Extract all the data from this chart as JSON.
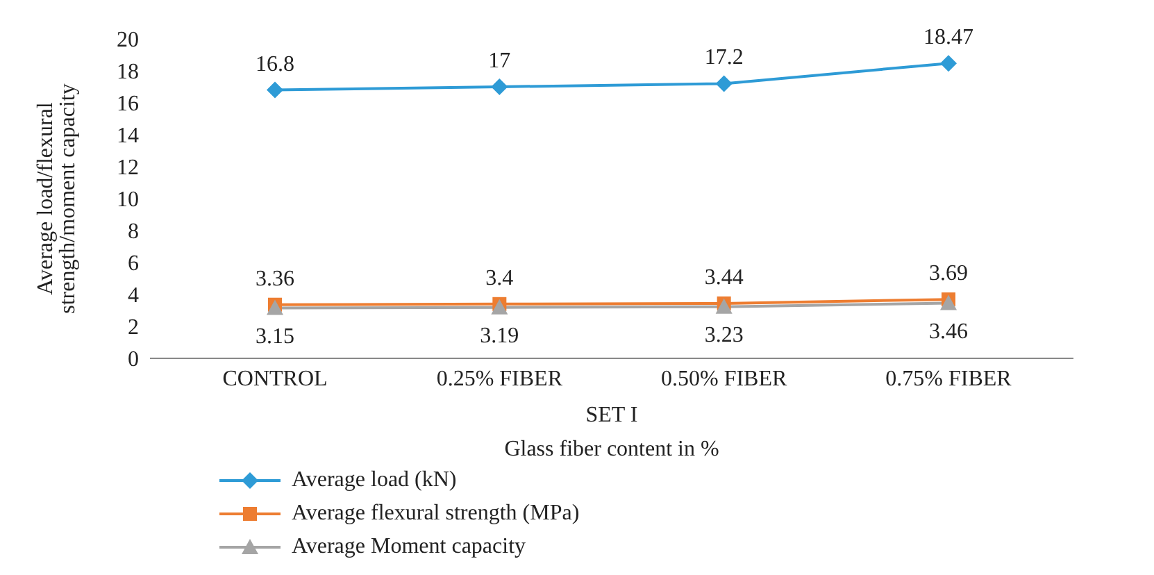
{
  "chart_data": {
    "type": "line",
    "xlabel": "Glass fiber content in %",
    "ylabel": "Average load/flexural strength/moment capacity",
    "categories": [
      "CONTROL",
      "0.25% FIBER",
      "0.50% FIBER",
      "0.75% FIBER"
    ],
    "series": [
      {
        "name": "Average load (kN)",
        "color": "#2e9bd6",
        "marker": "diamond",
        "values": [
          16.8,
          17,
          17.2,
          18.47
        ]
      },
      {
        "name": "Average flexural strength (MPa)",
        "color": "#ed7d31",
        "marker": "square",
        "values": [
          3.36,
          3.4,
          3.44,
          3.69
        ]
      },
      {
        "name": "Average Moment capacity",
        "color": "#a5a5a5",
        "marker": "triangle",
        "values": [
          3.15,
          3.19,
          3.23,
          3.46
        ]
      }
    ],
    "ylim": [
      0,
      20
    ],
    "yticks": [
      0,
      2,
      4,
      6,
      8,
      10,
      12,
      14,
      16,
      18,
      20
    ],
    "annotations": [
      "SET I"
    ],
    "data_labels": true,
    "legend": "bottom",
    "grid": false
  }
}
